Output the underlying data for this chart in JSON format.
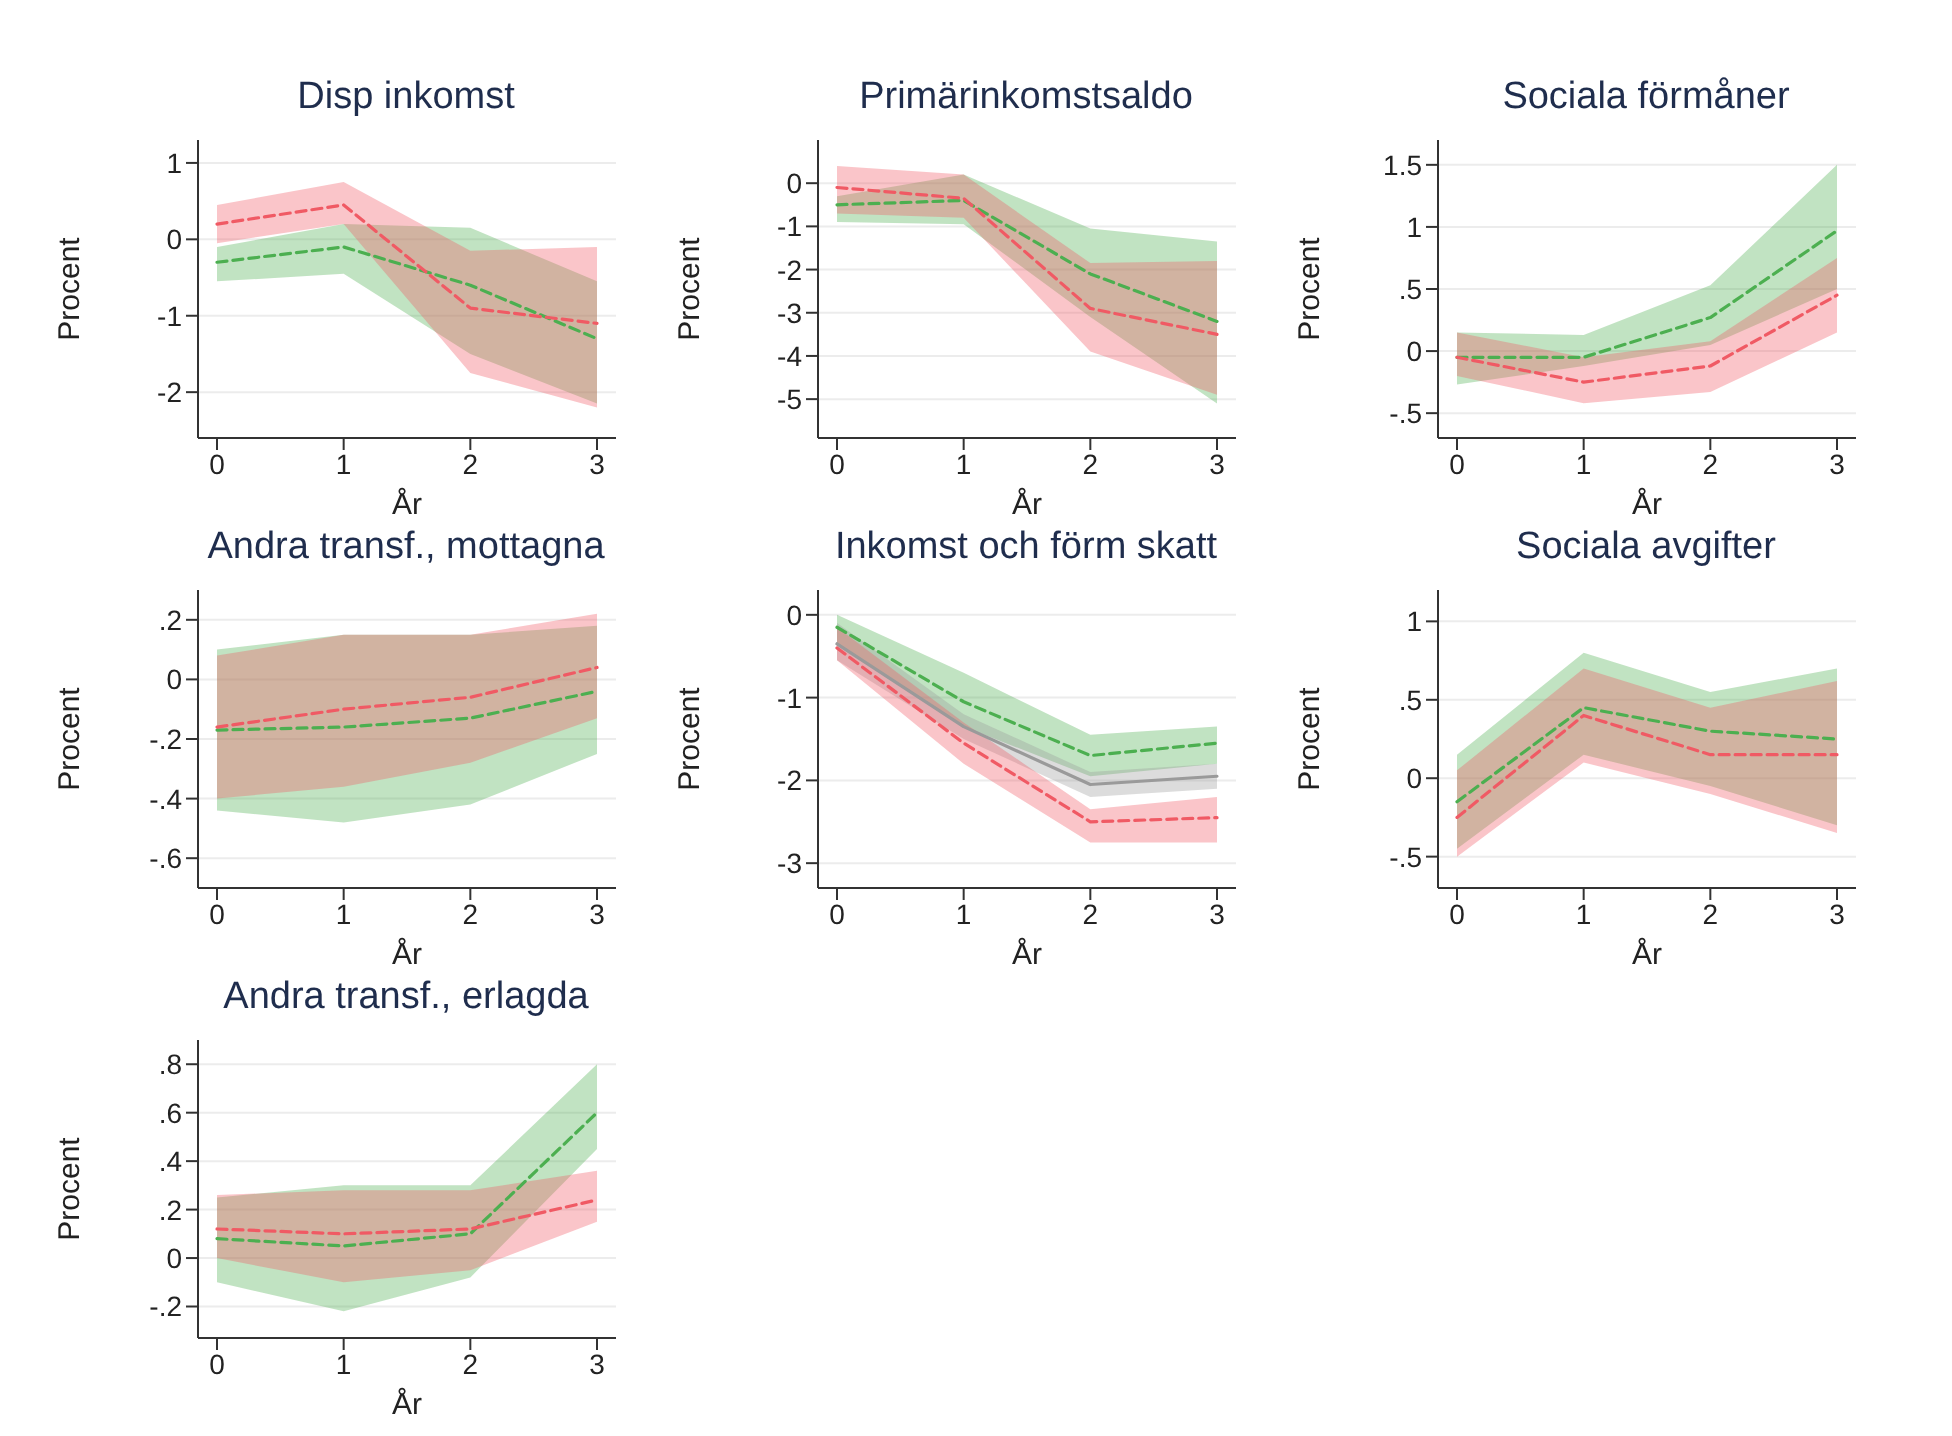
{
  "chart_data": [
    {
      "type": "line",
      "title": "Disp inkomst",
      "xlabel": "År",
      "ylabel": "Procent",
      "x": [
        0,
        1,
        2,
        3
      ],
      "xlim": [
        -0.15,
        3.15
      ],
      "xticks": [
        0,
        1,
        2,
        3
      ],
      "ylim": [
        -2.6,
        1.3
      ],
      "yticks": [
        -2,
        -1,
        0,
        1
      ],
      "grid": "y",
      "legend": false,
      "marker": "none",
      "line_style": "dashed",
      "series": [
        {
          "color": "#4caf50",
          "values": [
            -0.3,
            -0.1,
            -0.6,
            -1.3
          ],
          "lower": [
            -0.55,
            -0.45,
            -1.5,
            -2.15
          ],
          "upper": [
            -0.1,
            0.2,
            0.15,
            -0.55
          ]
        },
        {
          "color": "#f05a64",
          "values": [
            0.2,
            0.45,
            -0.9,
            -1.1
          ],
          "lower": [
            -0.05,
            0.2,
            -1.75,
            -2.2
          ],
          "upper": [
            0.45,
            0.75,
            -0.15,
            -0.1
          ]
        }
      ]
    },
    {
      "type": "line",
      "title": "Primärinkomstsaldo",
      "xlabel": "År",
      "ylabel": "Procent",
      "x": [
        0,
        1,
        2,
        3
      ],
      "xlim": [
        -0.15,
        3.15
      ],
      "xticks": [
        0,
        1,
        2,
        3
      ],
      "ylim": [
        -5.9,
        1
      ],
      "yticks": [
        -5,
        -4,
        -3,
        -2,
        -1,
        0
      ],
      "grid": "y",
      "legend": false,
      "marker": "none",
      "line_style": "dashed",
      "series": [
        {
          "color": "#4caf50",
          "values": [
            -0.5,
            -0.4,
            -2.1,
            -3.2
          ],
          "lower": [
            -0.9,
            -0.95,
            -3.1,
            -5.1
          ],
          "upper": [
            -0.3,
            0.2,
            -1.05,
            -1.35
          ]
        },
        {
          "color": "#f05a64",
          "values": [
            -0.1,
            -0.35,
            -2.9,
            -3.5
          ],
          "lower": [
            -0.7,
            -0.8,
            -3.9,
            -4.9
          ],
          "upper": [
            0.4,
            0.2,
            -1.85,
            -1.8
          ]
        }
      ]
    },
    {
      "type": "line",
      "title": "Sociala förmåner",
      "xlabel": "År",
      "ylabel": "Procent",
      "x": [
        0,
        1,
        2,
        3
      ],
      "xlim": [
        -0.15,
        3.15
      ],
      "xticks": [
        0,
        1,
        2,
        3
      ],
      "ylim": [
        -0.7,
        1.7
      ],
      "yticks": [
        {
          "value": -0.5,
          "label": "-.5"
        },
        0,
        {
          "value": 0.5,
          "label": ".5"
        },
        1,
        1.5
      ],
      "grid": "y",
      "legend": false,
      "marker": "none",
      "line_style": "dashed",
      "series": [
        {
          "color": "#4caf50",
          "values": [
            -0.05,
            -0.05,
            0.27,
            0.97
          ],
          "lower": [
            -0.27,
            -0.12,
            0.05,
            0.5
          ],
          "upper": [
            0.15,
            0.13,
            0.53,
            1.5
          ]
        },
        {
          "color": "#f05a64",
          "values": [
            -0.05,
            -0.25,
            -0.12,
            0.45
          ],
          "lower": [
            -0.2,
            -0.42,
            -0.33,
            0.15
          ],
          "upper": [
            0.15,
            -0.05,
            0.08,
            0.75
          ]
        }
      ]
    },
    {
      "type": "line",
      "title": "Andra transf., mottagna",
      "xlabel": "År",
      "ylabel": "Procent",
      "x": [
        0,
        1,
        2,
        3
      ],
      "xlim": [
        -0.15,
        3.15
      ],
      "xticks": [
        0,
        1,
        2,
        3
      ],
      "ylim": [
        -0.7,
        0.3
      ],
      "yticks": [
        {
          "value": -0.6,
          "label": "-.6"
        },
        {
          "value": -0.4,
          "label": "-.4"
        },
        {
          "value": -0.2,
          "label": "-.2"
        },
        0,
        {
          "value": 0.2,
          "label": ".2"
        }
      ],
      "grid": "y",
      "legend": false,
      "marker": "none",
      "line_style": "dashed",
      "series": [
        {
          "color": "#4caf50",
          "values": [
            -0.17,
            -0.16,
            -0.13,
            -0.04
          ],
          "lower": [
            -0.44,
            -0.48,
            -0.42,
            -0.25
          ],
          "upper": [
            0.1,
            0.15,
            0.15,
            0.18
          ]
        },
        {
          "color": "#f05a64",
          "values": [
            -0.16,
            -0.1,
            -0.06,
            0.04
          ],
          "lower": [
            -0.4,
            -0.36,
            -0.28,
            -0.13
          ],
          "upper": [
            0.08,
            0.15,
            0.15,
            0.22
          ]
        }
      ]
    },
    {
      "type": "line",
      "title": "Inkomst och förm skatt",
      "xlabel": "År",
      "ylabel": "Procent",
      "x": [
        0,
        1,
        2,
        3
      ],
      "xlim": [
        -0.15,
        3.15
      ],
      "xticks": [
        0,
        1,
        2,
        3
      ],
      "ylim": [
        -3.3,
        0.3
      ],
      "yticks": [
        -3,
        -2,
        -1,
        0
      ],
      "grid": "y",
      "legend": false,
      "marker": "none",
      "line_style": "dashed",
      "series": [
        {
          "color": "#4caf50",
          "values": [
            -0.15,
            -1.05,
            -1.7,
            -1.55
          ],
          "lower": [
            -0.35,
            -1.35,
            -1.95,
            -1.8
          ],
          "upper": [
            0,
            -0.7,
            -1.45,
            -1.35
          ]
        },
        {
          "color": "#9a9a9a",
          "line_style": "solid",
          "values": [
            -0.35,
            -1.35,
            -2.05,
            -1.95
          ],
          "lower": [
            -0.55,
            -1.5,
            -2.2,
            -2.1
          ],
          "upper": [
            -0.1,
            -1.2,
            -1.9,
            -1.8
          ]
        },
        {
          "color": "#f05a64",
          "values": [
            -0.4,
            -1.55,
            -2.5,
            -2.45
          ],
          "lower": [
            -0.55,
            -1.8,
            -2.75,
            -2.75
          ],
          "upper": [
            -0.15,
            -1.3,
            -2.35,
            -2.2
          ]
        }
      ]
    },
    {
      "type": "line",
      "title": "Sociala avgifter",
      "xlabel": "År",
      "ylabel": "Procent",
      "x": [
        0,
        1,
        2,
        3
      ],
      "xlim": [
        -0.15,
        3.15
      ],
      "xticks": [
        0,
        1,
        2,
        3
      ],
      "ylim": [
        -0.7,
        1.2
      ],
      "yticks": [
        {
          "value": -0.5,
          "label": "-.5"
        },
        0,
        {
          "value": 0.5,
          "label": ".5"
        },
        1
      ],
      "grid": "y",
      "legend": false,
      "marker": "none",
      "line_style": "dashed",
      "series": [
        {
          "color": "#4caf50",
          "values": [
            -0.15,
            0.45,
            0.3,
            0.25
          ],
          "lower": [
            -0.45,
            0.15,
            -0.05,
            -0.3
          ],
          "upper": [
            0.15,
            0.8,
            0.55,
            0.7
          ]
        },
        {
          "color": "#f05a64",
          "values": [
            -0.25,
            0.4,
            0.15,
            0.15
          ],
          "lower": [
            -0.5,
            0.1,
            -0.1,
            -0.35
          ],
          "upper": [
            0.05,
            0.7,
            0.45,
            0.62
          ]
        }
      ]
    },
    {
      "type": "line",
      "title": "Andra transf., erlagda",
      "xlabel": "År",
      "ylabel": "Procent",
      "x": [
        0,
        1,
        2,
        3
      ],
      "xlim": [
        -0.15,
        3.15
      ],
      "xticks": [
        0,
        1,
        2,
        3
      ],
      "ylim": [
        -0.33,
        0.9
      ],
      "yticks": [
        {
          "value": -0.2,
          "label": "-.2"
        },
        0,
        {
          "value": 0.2,
          "label": ".2"
        },
        {
          "value": 0.4,
          "label": ".4"
        },
        {
          "value": 0.6,
          "label": ".6"
        },
        {
          "value": 0.8,
          "label": ".8"
        }
      ],
      "grid": "y",
      "legend": false,
      "marker": "none",
      "line_style": "dashed",
      "series": [
        {
          "color": "#4caf50",
          "values": [
            0.08,
            0.05,
            0.1,
            0.6
          ],
          "lower": [
            -0.1,
            -0.22,
            -0.08,
            0.45
          ],
          "upper": [
            0.25,
            0.3,
            0.3,
            0.8
          ]
        },
        {
          "color": "#f05a64",
          "values": [
            0.12,
            0.1,
            0.12,
            0.24
          ],
          "lower": [
            0,
            -0.1,
            -0.05,
            0.15
          ],
          "upper": [
            0.26,
            0.28,
            0.28,
            0.36
          ]
        }
      ]
    }
  ]
}
